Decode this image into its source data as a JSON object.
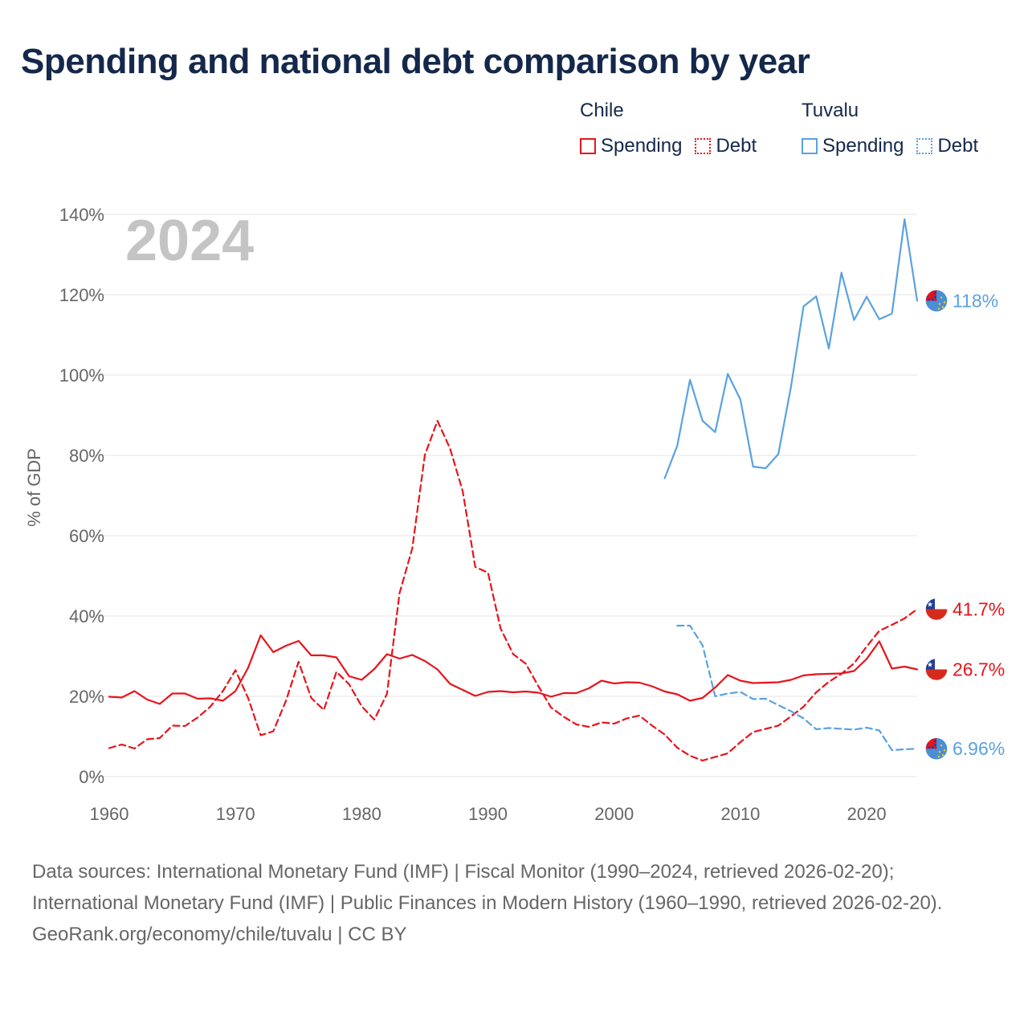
{
  "title": "Spending and national debt comparison by year",
  "legend": [
    {
      "country": "Chile",
      "color": "#e8141c",
      "items": [
        "Spending",
        "Debt"
      ]
    },
    {
      "country": "Tuvalu",
      "color": "#5aa2e0",
      "items": [
        "Spending",
        "Debt"
      ]
    }
  ],
  "chart_data": {
    "type": "line",
    "title": "Spending and national debt comparison by year",
    "year_overlay": "2024",
    "ylabel": "% of GDP",
    "xlabel": "",
    "xlim": [
      1960,
      2024
    ],
    "ylim": [
      0,
      140
    ],
    "x_ticks": [
      1960,
      1970,
      1980,
      1990,
      2000,
      2010,
      2020
    ],
    "x_tick_labels": [
      "1960",
      "1970",
      "1980",
      "1990",
      "2000",
      "2010",
      "2020"
    ],
    "y_ticks": [
      0,
      20,
      40,
      60,
      80,
      100,
      120,
      140
    ],
    "y_tick_labels": [
      "0%",
      "20%",
      "40%",
      "60%",
      "80%",
      "100%",
      "120%",
      "140%"
    ],
    "series": [
      {
        "name": "Chile Spending",
        "country": "Chile",
        "measure": "Spending",
        "dashed": false,
        "color": "#e8141c",
        "x": [
          1960,
          1961,
          1962,
          1963,
          1964,
          1965,
          1966,
          1967,
          1968,
          1969,
          1970,
          1971,
          1972,
          1973,
          1974,
          1975,
          1976,
          1977,
          1978,
          1979,
          1980,
          1981,
          1982,
          1983,
          1984,
          1985,
          1986,
          1987,
          1988,
          1989,
          1990,
          1991,
          1992,
          1993,
          1994,
          1995,
          1996,
          1997,
          1998,
          1999,
          2000,
          2001,
          2002,
          2003,
          2004,
          2005,
          2006,
          2007,
          2008,
          2009,
          2010,
          2011,
          2012,
          2013,
          2014,
          2015,
          2016,
          2017,
          2018,
          2019,
          2020,
          2021,
          2022,
          2023,
          2024
        ],
        "values": [
          19.9,
          19.7,
          21.3,
          19.2,
          18.1,
          20.7,
          20.7,
          19.4,
          19.5,
          18.9,
          21.3,
          27.1,
          35.2,
          31.0,
          32.6,
          33.8,
          30.2,
          30.2,
          29.7,
          25.0,
          24.1,
          26.8,
          30.5,
          29.4,
          30.3,
          28.8,
          26.7,
          23.1,
          21.6,
          20.1,
          21.1,
          21.3,
          21.0,
          21.2,
          20.9,
          19.9,
          20.8,
          20.8,
          22.0,
          23.9,
          23.2,
          23.5,
          23.4,
          22.5,
          21.2,
          20.5,
          18.9,
          19.6,
          22.2,
          25.3,
          23.9,
          23.3,
          23.4,
          23.5,
          24.1,
          25.2,
          25.5,
          25.6,
          25.7,
          26.3,
          29.3,
          33.7,
          26.9,
          27.4,
          26.7
        ],
        "end_label": "26.7%"
      },
      {
        "name": "Chile Debt",
        "country": "Chile",
        "measure": "Debt",
        "dashed": true,
        "color": "#e8141c",
        "x": [
          1960,
          1961,
          1962,
          1963,
          1964,
          1965,
          1966,
          1967,
          1968,
          1969,
          1970,
          1971,
          1972,
          1973,
          1974,
          1975,
          1976,
          1977,
          1978,
          1979,
          1980,
          1981,
          1982,
          1983,
          1984,
          1985,
          1986,
          1987,
          1988,
          1989,
          1990,
          1991,
          1992,
          1993,
          1994,
          1995,
          1996,
          1997,
          1998,
          1999,
          2000,
          2001,
          2002,
          2003,
          2004,
          2005,
          2006,
          2007,
          2008,
          2009,
          2010,
          2011,
          2012,
          2013,
          2014,
          2015,
          2016,
          2017,
          2018,
          2019,
          2020,
          2021,
          2022,
          2023,
          2024
        ],
        "values": [
          7.1,
          8.0,
          7.0,
          9.3,
          9.6,
          12.7,
          12.6,
          14.7,
          17.4,
          21.3,
          26.5,
          19.6,
          10.3,
          11.3,
          18.9,
          28.6,
          19.6,
          16.6,
          26.1,
          23.0,
          17.5,
          14.2,
          20.6,
          45.7,
          56.8,
          80.1,
          88.6,
          81.7,
          71.1,
          52.2,
          50.8,
          36.9,
          30.5,
          28.1,
          22.5,
          17.2,
          14.9,
          13.0,
          12.4,
          13.5,
          13.2,
          14.5,
          15.2,
          12.7,
          10.5,
          7.2,
          5.2,
          4.0,
          4.9,
          5.8,
          8.6,
          11.1,
          11.9,
          12.7,
          15.0,
          17.4,
          21.0,
          23.6,
          25.6,
          28.2,
          32.4,
          36.3,
          37.8,
          39.4,
          41.7
        ],
        "end_label": "41.7%"
      },
      {
        "name": "Tuvalu Spending",
        "country": "Tuvalu",
        "measure": "Spending",
        "dashed": false,
        "color": "#5aa2e0",
        "x": [
          2004,
          2005,
          2006,
          2007,
          2008,
          2009,
          2010,
          2011,
          2012,
          2013,
          2014,
          2015,
          2016,
          2017,
          2018,
          2019,
          2020,
          2021,
          2022,
          2023,
          2024
        ],
        "values": [
          74.3,
          82.4,
          98.8,
          88.6,
          85.8,
          100.3,
          93.9,
          77.2,
          76.8,
          80.3,
          97.0,
          117.1,
          119.6,
          106.6,
          125.5,
          113.7,
          119.5,
          113.9,
          115.3,
          138.8,
          118.5
        ],
        "end_label": "118%"
      },
      {
        "name": "Tuvalu Debt",
        "country": "Tuvalu",
        "measure": "Debt",
        "dashed": true,
        "color": "#5aa2e0",
        "x": [
          2005,
          2006,
          2007,
          2008,
          2009,
          2010,
          2011,
          2012,
          2013,
          2014,
          2015,
          2016,
          2017,
          2018,
          2019,
          2020,
          2021,
          2022,
          2023,
          2024
        ],
        "values": [
          37.6,
          37.6,
          32.7,
          20.0,
          20.7,
          21.1,
          19.3,
          19.4,
          17.8,
          16.3,
          14.5,
          11.8,
          12.1,
          11.9,
          11.7,
          12.2,
          11.5,
          6.6,
          6.8,
          6.96
        ],
        "end_label": "6.96%"
      }
    ]
  },
  "footer": {
    "sources": "Data sources: International Monetary Fund (IMF) | Fiscal Monitor (1990–2024, retrieved 2026-02-20); International Monetary Fund (IMF) | Public Finances in Modern History (1960–1990, retrieved 2026-02-20).",
    "credit": "GeoRank.org/economy/chile/tuvalu | CC BY"
  }
}
